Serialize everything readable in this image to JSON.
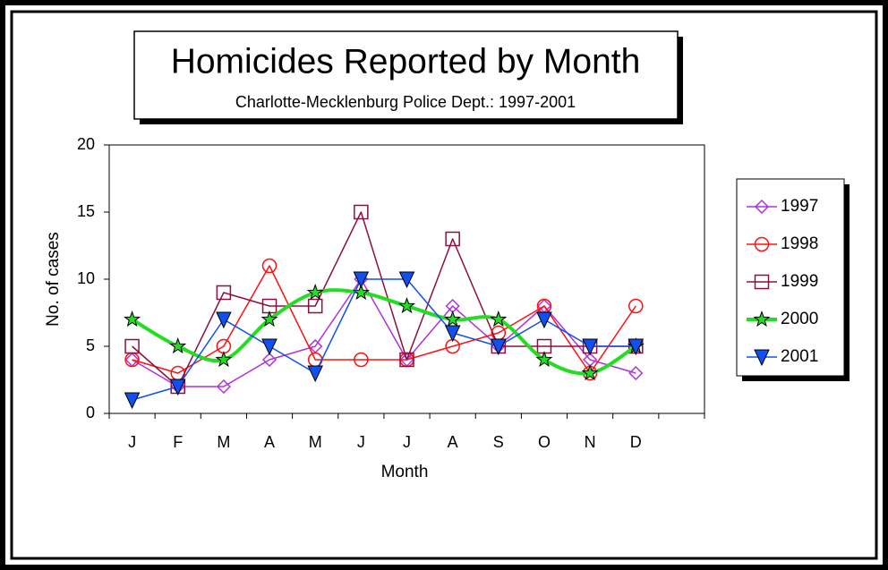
{
  "chart_data": {
    "type": "line",
    "title": "Homicides Reported by Month",
    "subtitle": "Charlotte-Mecklenburg Police Dept.: 1997-2001",
    "x_label": "Month",
    "y_label": "No. of cases",
    "categories": [
      "J",
      "F",
      "M",
      "A",
      "M",
      "J",
      "J",
      "A",
      "S",
      "O",
      "N",
      "D",
      null
    ],
    "ylim": [
      0,
      20
    ],
    "yticks": [
      0,
      5,
      10,
      15,
      20
    ],
    "grid": false,
    "legend": "right",
    "series": [
      {
        "name": "1997",
        "color": "#b030e0",
        "marker": "diamond",
        "values": [
          4,
          2,
          2,
          4,
          5,
          10,
          4,
          8,
          5,
          8,
          4,
          3,
          null
        ]
      },
      {
        "name": "1998",
        "color": "#ff1010",
        "marker": "circle",
        "values": [
          4,
          3,
          5,
          11,
          4,
          4,
          4,
          5,
          6,
          8,
          3,
          8,
          null
        ]
      },
      {
        "name": "1999",
        "color": "#8b1040",
        "marker": "square",
        "values": [
          5,
          2,
          9,
          8,
          8,
          15,
          4,
          13,
          5,
          5,
          5,
          5,
          null
        ]
      },
      {
        "name": "2000",
        "color": "#22dd22",
        "marker": "star",
        "smooth": true,
        "values": [
          7,
          5,
          4,
          7,
          9,
          9,
          8,
          7,
          7,
          4,
          3,
          5,
          null
        ]
      },
      {
        "name": "2001",
        "color": "#1050f0",
        "marker": "triangle-down",
        "values": [
          1,
          2,
          7,
          5,
          3,
          10,
          10,
          6,
          5,
          7,
          5,
          5,
          null
        ]
      }
    ]
  }
}
